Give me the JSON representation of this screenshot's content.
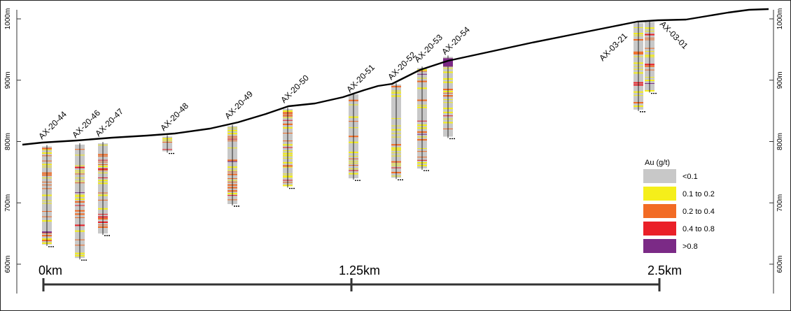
{
  "colors": {
    "lt_0_1": "#c8c8c8",
    "0_1_to_0_2": "#f5ef1a",
    "0_2_to_0_4": "#f26b24",
    "0_4_to_0_8": "#ea2028",
    "gt_0_8": "#7b2a86",
    "topography": "#000000",
    "frame": "#222222"
  },
  "elevation_ticks": [
    "1000m",
    "900m",
    "800m",
    "700m",
    "600m"
  ],
  "scale_bar": {
    "labels": [
      "0km",
      "1.25km",
      "2.5km"
    ]
  },
  "legend": {
    "title": "Au (g/t)",
    "items": [
      {
        "label": "<0.1",
        "color": "#c8c8c8"
      },
      {
        "label": "0.1 to 0.2",
        "color": "#f5ef1a"
      },
      {
        "label": "0.2 to 0.4",
        "color": "#f26b24"
      },
      {
        "label": "0.4 to 0.8",
        "color": "#ea2028"
      },
      {
        "label": ">0.8",
        "color": "#7b2a86"
      }
    ]
  },
  "drillholes": [
    {
      "id": "AX-20-44",
      "collar_elev": 792,
      "end_elev": 632
    },
    {
      "id": "AX-20-46",
      "collar_elev": 795,
      "end_elev": 610
    },
    {
      "id": "AX-20-47",
      "collar_elev": 797,
      "end_elev": 650
    },
    {
      "id": "AX-20-48",
      "collar_elev": 808,
      "end_elev": 784
    },
    {
      "id": "AX-20-49",
      "collar_elev": 825,
      "end_elev": 698
    },
    {
      "id": "AX-20-50",
      "collar_elev": 853,
      "end_elev": 727
    },
    {
      "id": "AX-20-51",
      "collar_elev": 877,
      "end_elev": 740
    },
    {
      "id": "AX-20-52",
      "collar_elev": 893,
      "end_elev": 741
    },
    {
      "id": "AX-20-53",
      "collar_elev": 920,
      "end_elev": 756
    },
    {
      "id": "AX-20-54",
      "collar_elev": 938,
      "end_elev": 808
    },
    {
      "id": "AX-03-21",
      "collar_elev": 993,
      "end_elev": 852
    },
    {
      "id": "AX-03-01",
      "collar_elev": 995,
      "end_elev": 882
    }
  ]
}
